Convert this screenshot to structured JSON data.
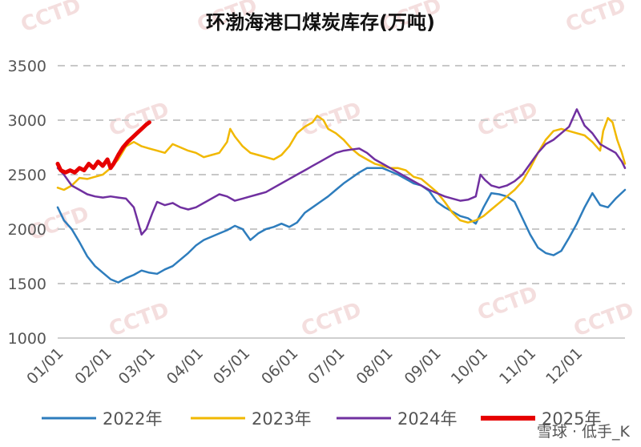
{
  "chart_data": {
    "type": "line",
    "title": "环渤海港口煤炭库存(万吨)",
    "xlabel": "",
    "ylabel": "",
    "ylim": [
      1000,
      3500
    ],
    "yticks": [
      1000,
      1500,
      2000,
      2500,
      3000,
      3500
    ],
    "xlim": [
      1,
      366
    ],
    "xticks": [
      {
        "label": "01/01",
        "day": 1
      },
      {
        "label": "02/01",
        "day": 32
      },
      {
        "label": "03/01",
        "day": 60
      },
      {
        "label": "04/01",
        "day": 91
      },
      {
        "label": "05/01",
        "day": 121
      },
      {
        "label": "06/01",
        "day": 152
      },
      {
        "label": "07/01",
        "day": 182
      },
      {
        "label": "08/01",
        "day": 213
      },
      {
        "label": "09/01",
        "day": 244
      },
      {
        "label": "10/01",
        "day": 274
      },
      {
        "label": "11/01",
        "day": 305
      },
      {
        "label": "12/01",
        "day": 335
      }
    ],
    "grid": "horizontal-dashed",
    "legend_position": "bottom",
    "series": [
      {
        "name": "2022年",
        "color": "#2e7dbd",
        "points": [
          [
            1,
            2200
          ],
          [
            5,
            2080
          ],
          [
            10,
            2000
          ],
          [
            15,
            1880
          ],
          [
            20,
            1750
          ],
          [
            25,
            1660
          ],
          [
            30,
            1600
          ],
          [
            35,
            1540
          ],
          [
            40,
            1510
          ],
          [
            45,
            1550
          ],
          [
            50,
            1580
          ],
          [
            55,
            1620
          ],
          [
            60,
            1600
          ],
          [
            65,
            1590
          ],
          [
            70,
            1630
          ],
          [
            75,
            1660
          ],
          [
            80,
            1720
          ],
          [
            85,
            1780
          ],
          [
            90,
            1850
          ],
          [
            95,
            1900
          ],
          [
            100,
            1930
          ],
          [
            105,
            1960
          ],
          [
            110,
            1990
          ],
          [
            115,
            2030
          ],
          [
            120,
            2000
          ],
          [
            125,
            1900
          ],
          [
            130,
            1960
          ],
          [
            135,
            2000
          ],
          [
            140,
            2020
          ],
          [
            145,
            2050
          ],
          [
            150,
            2020
          ],
          [
            155,
            2060
          ],
          [
            160,
            2150
          ],
          [
            165,
            2200
          ],
          [
            170,
            2250
          ],
          [
            175,
            2300
          ],
          [
            180,
            2360
          ],
          [
            185,
            2420
          ],
          [
            190,
            2470
          ],
          [
            195,
            2520
          ],
          [
            200,
            2560
          ],
          [
            205,
            2560
          ],
          [
            210,
            2560
          ],
          [
            215,
            2530
          ],
          [
            220,
            2500
          ],
          [
            225,
            2460
          ],
          [
            230,
            2420
          ],
          [
            235,
            2400
          ],
          [
            240,
            2350
          ],
          [
            245,
            2250
          ],
          [
            250,
            2200
          ],
          [
            255,
            2160
          ],
          [
            260,
            2120
          ],
          [
            265,
            2100
          ],
          [
            270,
            2050
          ],
          [
            275,
            2200
          ],
          [
            280,
            2330
          ],
          [
            285,
            2320
          ],
          [
            290,
            2300
          ],
          [
            295,
            2250
          ],
          [
            300,
            2100
          ],
          [
            305,
            1950
          ],
          [
            310,
            1830
          ],
          [
            315,
            1780
          ],
          [
            320,
            1760
          ],
          [
            325,
            1800
          ],
          [
            330,
            1920
          ],
          [
            335,
            2050
          ],
          [
            340,
            2200
          ],
          [
            345,
            2330
          ],
          [
            350,
            2220
          ],
          [
            355,
            2200
          ],
          [
            360,
            2280
          ],
          [
            366,
            2360
          ]
        ]
      },
      {
        "name": "2023年",
        "color": "#f1b800",
        "points": [
          [
            1,
            2380
          ],
          [
            5,
            2360
          ],
          [
            10,
            2400
          ],
          [
            15,
            2470
          ],
          [
            20,
            2460
          ],
          [
            25,
            2480
          ],
          [
            30,
            2500
          ],
          [
            35,
            2560
          ],
          [
            40,
            2640
          ],
          [
            45,
            2760
          ],
          [
            50,
            2800
          ],
          [
            55,
            2760
          ],
          [
            60,
            2740
          ],
          [
            65,
            2720
          ],
          [
            70,
            2700
          ],
          [
            75,
            2780
          ],
          [
            80,
            2750
          ],
          [
            85,
            2720
          ],
          [
            90,
            2700
          ],
          [
            95,
            2660
          ],
          [
            100,
            2680
          ],
          [
            105,
            2700
          ],
          [
            110,
            2800
          ],
          [
            112,
            2920
          ],
          [
            115,
            2850
          ],
          [
            120,
            2760
          ],
          [
            125,
            2700
          ],
          [
            130,
            2680
          ],
          [
            135,
            2660
          ],
          [
            140,
            2640
          ],
          [
            145,
            2680
          ],
          [
            150,
            2760
          ],
          [
            155,
            2880
          ],
          [
            160,
            2940
          ],
          [
            165,
            2980
          ],
          [
            168,
            3040
          ],
          [
            172,
            3000
          ],
          [
            175,
            2920
          ],
          [
            180,
            2880
          ],
          [
            185,
            2820
          ],
          [
            190,
            2740
          ],
          [
            195,
            2680
          ],
          [
            200,
            2640
          ],
          [
            205,
            2600
          ],
          [
            210,
            2580
          ],
          [
            215,
            2560
          ],
          [
            220,
            2560
          ],
          [
            225,
            2540
          ],
          [
            230,
            2480
          ],
          [
            235,
            2460
          ],
          [
            240,
            2400
          ],
          [
            245,
            2340
          ],
          [
            250,
            2250
          ],
          [
            255,
            2150
          ],
          [
            260,
            2080
          ],
          [
            265,
            2060
          ],
          [
            270,
            2080
          ],
          [
            275,
            2120
          ],
          [
            280,
            2180
          ],
          [
            285,
            2240
          ],
          [
            290,
            2300
          ],
          [
            295,
            2360
          ],
          [
            300,
            2440
          ],
          [
            305,
            2560
          ],
          [
            310,
            2700
          ],
          [
            315,
            2820
          ],
          [
            320,
            2900
          ],
          [
            325,
            2920
          ],
          [
            330,
            2900
          ],
          [
            335,
            2880
          ],
          [
            340,
            2860
          ],
          [
            345,
            2800
          ],
          [
            350,
            2720
          ],
          [
            352,
            2900
          ],
          [
            355,
            3020
          ],
          [
            358,
            2980
          ],
          [
            361,
            2820
          ],
          [
            364,
            2700
          ],
          [
            366,
            2600
          ]
        ]
      },
      {
        "name": "2024年",
        "color": "#7030a0",
        "points": [
          [
            1,
            2560
          ],
          [
            5,
            2500
          ],
          [
            10,
            2400
          ],
          [
            15,
            2360
          ],
          [
            20,
            2320
          ],
          [
            25,
            2300
          ],
          [
            30,
            2290
          ],
          [
            35,
            2300
          ],
          [
            40,
            2290
          ],
          [
            45,
            2280
          ],
          [
            50,
            2200
          ],
          [
            52,
            2100
          ],
          [
            55,
            1950
          ],
          [
            58,
            2000
          ],
          [
            62,
            2150
          ],
          [
            65,
            2250
          ],
          [
            70,
            2220
          ],
          [
            75,
            2240
          ],
          [
            80,
            2200
          ],
          [
            85,
            2180
          ],
          [
            90,
            2200
          ],
          [
            95,
            2240
          ],
          [
            100,
            2280
          ],
          [
            105,
            2320
          ],
          [
            110,
            2300
          ],
          [
            115,
            2260
          ],
          [
            120,
            2280
          ],
          [
            125,
            2300
          ],
          [
            130,
            2320
          ],
          [
            135,
            2340
          ],
          [
            140,
            2380
          ],
          [
            145,
            2420
          ],
          [
            150,
            2460
          ],
          [
            155,
            2500
          ],
          [
            160,
            2540
          ],
          [
            165,
            2580
          ],
          [
            170,
            2620
          ],
          [
            175,
            2660
          ],
          [
            180,
            2700
          ],
          [
            185,
            2720
          ],
          [
            190,
            2730
          ],
          [
            195,
            2740
          ],
          [
            200,
            2700
          ],
          [
            205,
            2640
          ],
          [
            210,
            2600
          ],
          [
            215,
            2560
          ],
          [
            220,
            2520
          ],
          [
            225,
            2480
          ],
          [
            230,
            2440
          ],
          [
            235,
            2400
          ],
          [
            240,
            2360
          ],
          [
            245,
            2330
          ],
          [
            250,
            2300
          ],
          [
            255,
            2280
          ],
          [
            260,
            2260
          ],
          [
            265,
            2270
          ],
          [
            270,
            2300
          ],
          [
            273,
            2500
          ],
          [
            276,
            2450
          ],
          [
            280,
            2400
          ],
          [
            285,
            2380
          ],
          [
            290,
            2400
          ],
          [
            295,
            2440
          ],
          [
            300,
            2500
          ],
          [
            305,
            2600
          ],
          [
            310,
            2700
          ],
          [
            315,
            2780
          ],
          [
            320,
            2820
          ],
          [
            325,
            2880
          ],
          [
            330,
            2940
          ],
          [
            335,
            3100
          ],
          [
            340,
            2950
          ],
          [
            345,
            2880
          ],
          [
            350,
            2780
          ],
          [
            355,
            2740
          ],
          [
            360,
            2700
          ],
          [
            364,
            2620
          ],
          [
            366,
            2560
          ]
        ]
      },
      {
        "name": "2025年",
        "color": "#e60000",
        "points": [
          [
            1,
            2600
          ],
          [
            3,
            2540
          ],
          [
            6,
            2520
          ],
          [
            9,
            2540
          ],
          [
            12,
            2520
          ],
          [
            15,
            2560
          ],
          [
            18,
            2540
          ],
          [
            21,
            2600
          ],
          [
            24,
            2560
          ],
          [
            27,
            2620
          ],
          [
            30,
            2580
          ],
          [
            33,
            2640
          ],
          [
            35,
            2560
          ],
          [
            37,
            2600
          ],
          [
            40,
            2680
          ],
          [
            43,
            2750
          ],
          [
            46,
            2800
          ],
          [
            49,
            2840
          ],
          [
            52,
            2880
          ],
          [
            55,
            2920
          ],
          [
            58,
            2960
          ],
          [
            60,
            2980
          ]
        ]
      }
    ]
  },
  "watermark": "CCTD",
  "credit": "雪球 · 低手_K"
}
